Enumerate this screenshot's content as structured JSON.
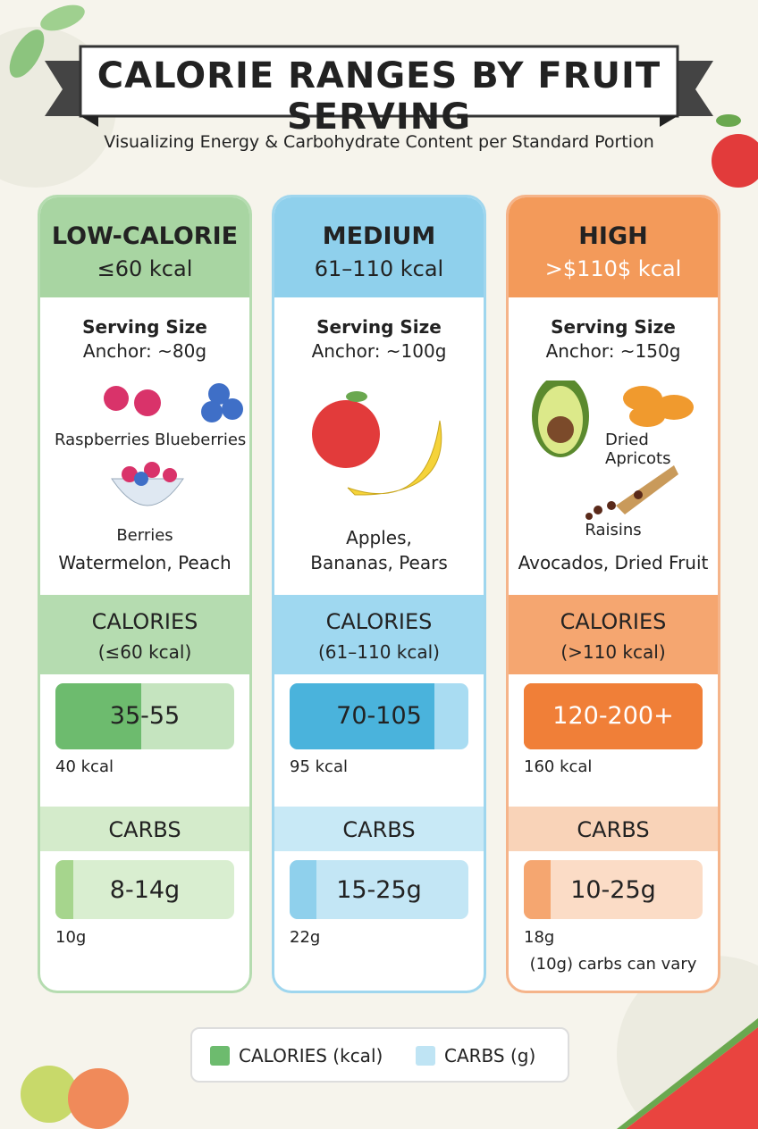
{
  "header": {
    "title": "CALORIE RANGES BY FRUIT SERVING",
    "subtitle": "Visualizing Energy & Carbohydrate Content per Standard Portion"
  },
  "columns": [
    {
      "title": "LOW-CALORIE",
      "range": "≤60 kcal",
      "serving_label": "Serving Size",
      "serving_anchor": "Anchor: ~80g",
      "foods": [
        "Raspberries",
        "Blueberries",
        "Berries"
      ],
      "caption": "Watermelon, Peach",
      "calories_label": "CALORIES",
      "calories_range": "(≤60 kcal)",
      "calories_value": "35-55",
      "calories_example": "40 kcal",
      "carbs_label": "CARBS",
      "carbs_value": "8-14g",
      "carbs_example": "10g"
    },
    {
      "title": "MEDIUM",
      "range": "61–110 kcal",
      "serving_label": "Serving Size",
      "serving_anchor": "Anchor: ~100g",
      "foods": [],
      "caption": "Apples, Bananas, Pears",
      "calories_label": "CALORIES",
      "calories_range": "(61–110 kcal)",
      "calories_value": "70-105",
      "calories_example": "95 kcal",
      "carbs_label": "CARBS",
      "carbs_value": "15-25g",
      "carbs_example": "22g"
    },
    {
      "title": "HIGH",
      "range": ">$110$ kcal",
      "serving_label": "Serving Size",
      "serving_anchor": "Anchor: ~150g",
      "foods": [
        "Dried Apricots",
        "Raisins"
      ],
      "caption": "Avocados, Dried Fruit",
      "calories_label": "CALORIES",
      "calories_range": "(>110 kcal)",
      "calories_value": "120-200+",
      "calories_example": "160 kcal",
      "carbs_label": "CARBS",
      "carbs_value": "10-25g",
      "carbs_example": "18g",
      "note": "(10g) carbs can vary"
    }
  ],
  "legend": [
    "CALORIES (kcal)",
    "CARBS (g)"
  ]
}
